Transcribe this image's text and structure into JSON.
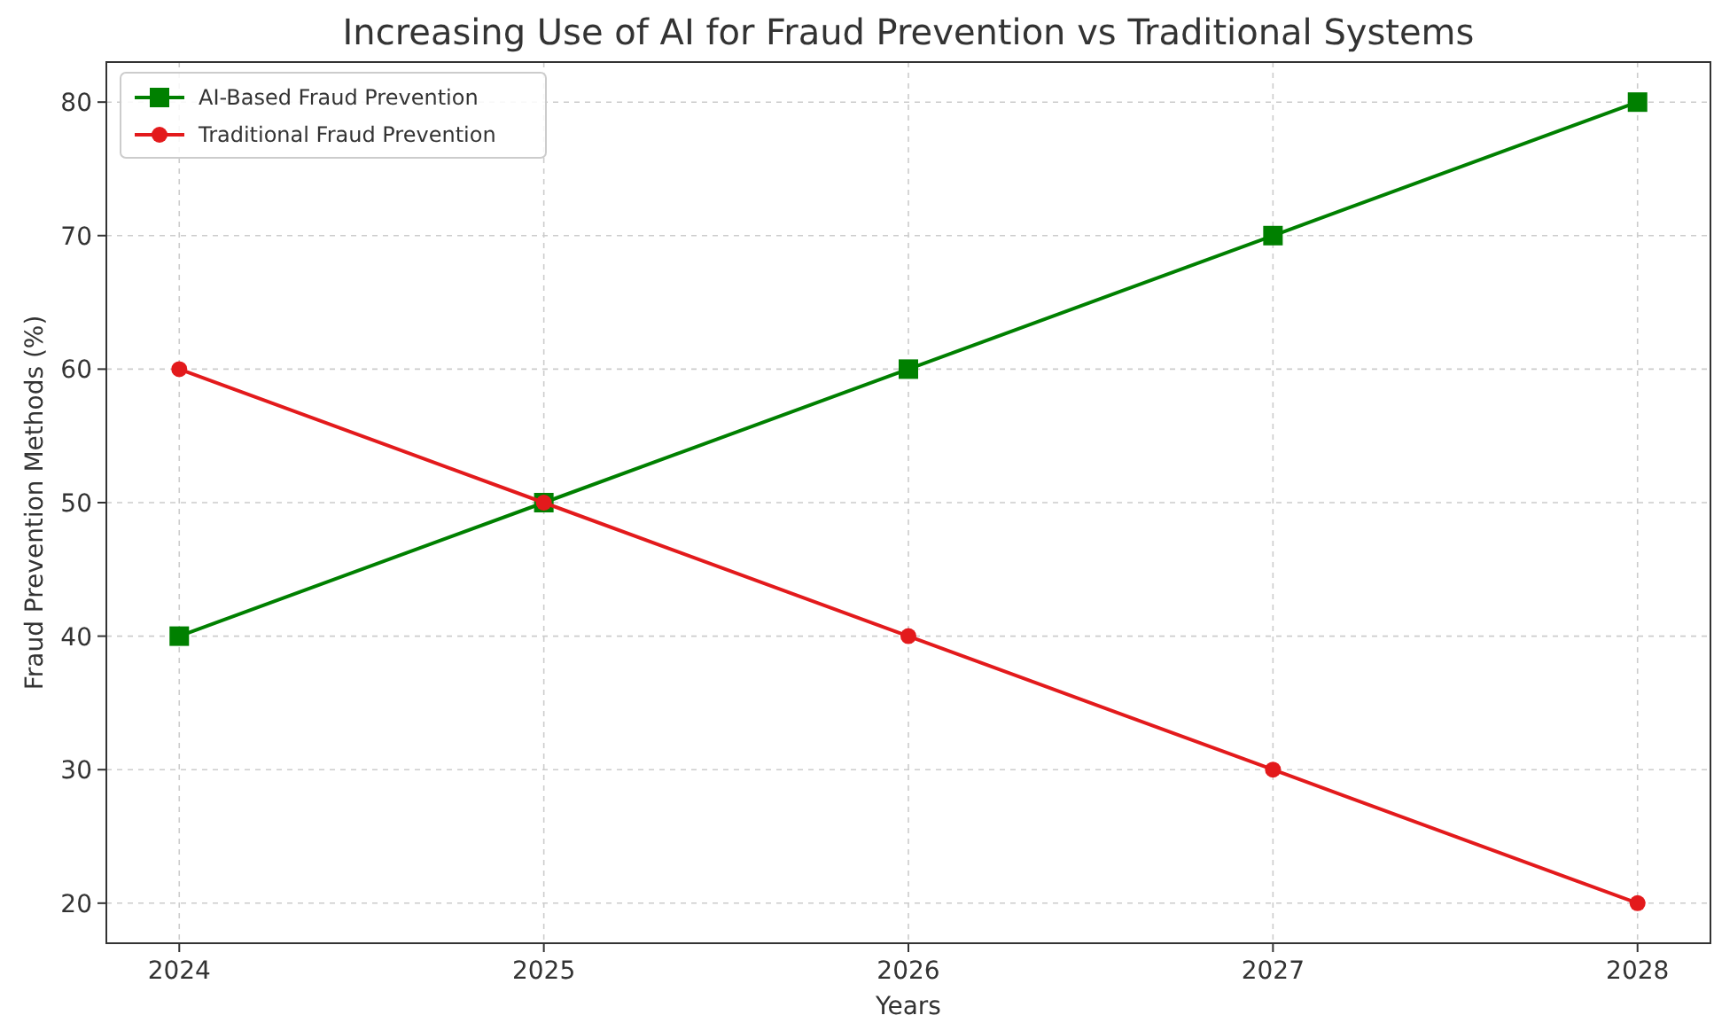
{
  "chart_data": {
    "type": "line",
    "title": "Increasing Use of AI for Fraud Prevention vs Traditional Systems",
    "xlabel": "Years",
    "ylabel": "Fraud Prevention Methods (%)",
    "x": [
      2024,
      2025,
      2026,
      2027,
      2028
    ],
    "series": [
      {
        "name": "AI-Based Fraud Prevention",
        "color": "#008000",
        "values": [
          40,
          50,
          60,
          70,
          80
        ],
        "marker": "square"
      },
      {
        "name": "Traditional Fraud Prevention",
        "color": "#e31a1c",
        "values": [
          60,
          50,
          40,
          30,
          20
        ],
        "marker": "circle"
      }
    ],
    "xlim": [
      2023.8,
      2028.2
    ],
    "xticks": [
      2024,
      2025,
      2026,
      2027,
      2028
    ],
    "ylim": [
      17,
      83
    ],
    "yticks": [
      20,
      30,
      40,
      50,
      60,
      70,
      80
    ],
    "grid": true,
    "legend": "top left",
    "line_style": "solid"
  }
}
